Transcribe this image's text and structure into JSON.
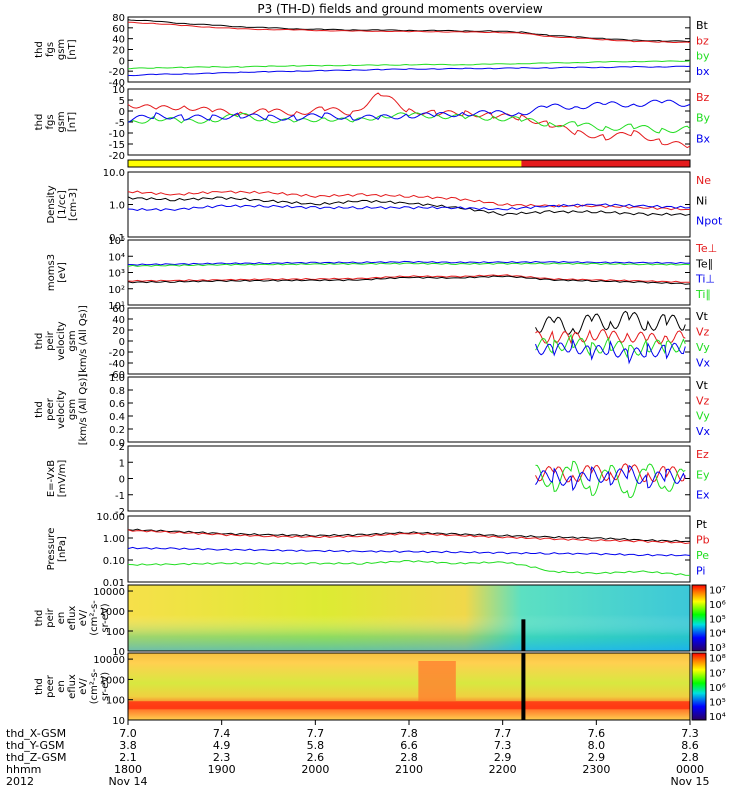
{
  "title": "P3 (TH-D) fields and ground moments overview",
  "colors": {
    "black": "#000000",
    "red": "#e41a1c",
    "green": "#22dd22",
    "blue": "#0000ee",
    "yellow": "#ffff00"
  },
  "chart_data": [
    {
      "type": "line",
      "id": "fgs",
      "ylabel": [
        "thd",
        "fgs",
        "gsm",
        "[nT]"
      ],
      "ylim": [
        -40,
        80
      ],
      "yticks": [
        -40,
        -20,
        0,
        20,
        40,
        60,
        80
      ],
      "legend": [
        {
          "name": "Bt",
          "color": "black"
        },
        {
          "name": "bz",
          "color": "red"
        },
        {
          "name": "by",
          "color": "green"
        },
        {
          "name": "bx",
          "color": "blue"
        }
      ],
      "x": [
        0,
        0.3,
        0.6,
        0.9,
        1.2,
        1.5,
        1.8,
        2.1,
        2.4,
        2.7,
        3.0,
        3.3,
        3.6,
        3.9,
        4.2,
        4.5,
        4.8,
        5.1,
        5.4,
        5.7,
        6.0
      ],
      "series": [
        {
          "name": "Bt",
          "color": "black",
          "values": [
            75,
            72,
            68,
            65,
            62,
            60,
            58,
            57,
            56,
            56,
            55,
            55,
            54,
            54,
            52,
            46,
            43,
            40,
            37,
            36,
            35
          ]
        },
        {
          "name": "bz",
          "color": "red",
          "values": [
            70,
            68,
            64,
            61,
            58,
            57,
            56,
            55,
            54,
            54,
            53,
            53,
            52,
            52,
            50,
            44,
            41,
            38,
            35,
            34,
            33
          ]
        },
        {
          "name": "by",
          "color": "green",
          "values": [
            -15,
            -14,
            -13,
            -12,
            -12,
            -11,
            -10,
            -10,
            -9,
            -9,
            -8,
            -8,
            -8,
            -7,
            -6,
            -5,
            -4,
            -3,
            -2,
            -2,
            -1
          ]
        },
        {
          "name": "bx",
          "color": "blue",
          "values": [
            -28,
            -26,
            -25,
            -24,
            -22,
            -21,
            -20,
            -19,
            -18,
            -17,
            -16,
            -16,
            -15,
            -15,
            -14,
            -14,
            -13,
            -13,
            -12,
            -12,
            -11
          ]
        }
      ]
    },
    {
      "type": "line",
      "id": "fgs_zoom",
      "ylabel": [
        "thd",
        "fgs",
        "gsm",
        "[nT]"
      ],
      "ylim": [
        -20,
        10
      ],
      "yticks": [
        -20,
        -15,
        -10,
        -5,
        0,
        5,
        10
      ],
      "legend": [
        {
          "name": "Bz",
          "color": "red"
        },
        {
          "name": "By",
          "color": "green"
        },
        {
          "name": "Bx",
          "color": "blue"
        }
      ],
      "x": [
        0,
        0.3,
        0.6,
        0.9,
        1.2,
        1.5,
        1.8,
        2.1,
        2.4,
        2.7,
        3.0,
        3.3,
        3.6,
        3.9,
        4.2,
        4.5,
        4.8,
        5.1,
        5.4,
        5.7,
        6.0
      ],
      "series": [
        {
          "name": "Bz",
          "color": "red",
          "values": [
            3,
            1,
            2,
            0,
            -1,
            0,
            -1,
            1,
            -1,
            8,
            0,
            -1,
            -1,
            -2,
            -3,
            -6,
            -10,
            -12,
            -10,
            -14,
            -16
          ]
        },
        {
          "name": "By",
          "color": "green",
          "values": [
            -6,
            -3,
            -5,
            -4,
            -2,
            -4,
            -5,
            -3,
            -5,
            -2,
            -2,
            -2,
            -3,
            -3,
            -4,
            -6,
            -6,
            -8,
            -7,
            -9,
            -8
          ]
        },
        {
          "name": "Bx",
          "color": "blue",
          "values": [
            -4,
            -2,
            -3,
            -3,
            -2,
            -3,
            -3,
            -2,
            -3,
            -3,
            -2,
            -2,
            -1,
            -1,
            -1,
            2,
            2,
            3,
            3,
            4,
            3
          ]
        }
      ]
    },
    {
      "type": "bar",
      "id": "mode_bar",
      "segments": [
        {
          "from": 0,
          "to": 4.2,
          "color": "yellow"
        },
        {
          "from": 4.2,
          "to": 6.0,
          "color": "red"
        }
      ]
    },
    {
      "type": "line",
      "id": "density",
      "scale": "log",
      "ylabel": [
        "Density",
        "[1/cc]",
        "[cm-3]"
      ],
      "ylim": [
        0.1,
        10
      ],
      "yticks": [
        0.1,
        1.0,
        10.0
      ],
      "legend": [
        {
          "name": "Ne",
          "color": "red"
        },
        {
          "name": "Ni",
          "color": "black"
        },
        {
          "name": "Npot",
          "color": "blue"
        }
      ],
      "x": [
        0,
        0.5,
        1.0,
        1.5,
        2.0,
        2.5,
        3.0,
        3.5,
        4.0,
        4.5,
        5.0,
        5.5,
        6.0
      ],
      "series": [
        {
          "name": "Ne",
          "color": "red",
          "values": [
            2.5,
            2.0,
            2.5,
            2.3,
            1.8,
            2.0,
            1.8,
            1.5,
            1.0,
            0.9,
            0.9,
            0.8,
            0.7
          ]
        },
        {
          "name": "Ni",
          "color": "black",
          "values": [
            1.6,
            1.4,
            1.6,
            1.3,
            1.0,
            1.3,
            1.1,
            0.8,
            0.5,
            0.6,
            0.6,
            0.5,
            0.5
          ]
        },
        {
          "name": "Npot",
          "color": "blue",
          "values": [
            0.7,
            0.7,
            0.9,
            0.9,
            0.8,
            0.8,
            0.8,
            0.8,
            0.7,
            0.9,
            1.0,
            0.9,
            0.8
          ]
        }
      ]
    },
    {
      "type": "line",
      "id": "temperature",
      "scale": "log",
      "ylabel": [
        "moms3",
        "[eV]"
      ],
      "ylim": [
        10,
        100000
      ],
      "yticks": [
        10,
        100,
        1000,
        10000,
        100000
      ],
      "ytick_labels": [
        "10¹",
        "10²",
        "10³",
        "10⁴",
        "10⁵"
      ],
      "legend": [
        {
          "name": "Te⊥",
          "color": "red"
        },
        {
          "name": "Te∥",
          "color": "black"
        },
        {
          "name": "Ti⊥",
          "color": "blue"
        },
        {
          "name": "Ti∥",
          "color": "green"
        }
      ],
      "x": [
        0,
        0.5,
        1.0,
        1.5,
        2.0,
        2.5,
        3.0,
        3.5,
        4.0,
        4.5,
        5.0,
        5.5,
        6.0
      ],
      "series": [
        {
          "name": "Te⊥",
          "color": "red",
          "values": [
            300,
            320,
            350,
            380,
            400,
            420,
            600,
            550,
            700,
            400,
            350,
            300,
            250
          ]
        },
        {
          "name": "Te∥",
          "color": "black",
          "values": [
            250,
            270,
            300,
            320,
            330,
            350,
            500,
            450,
            600,
            350,
            300,
            250,
            200
          ]
        },
        {
          "name": "Ti⊥",
          "color": "blue",
          "values": [
            3000,
            3300,
            3600,
            3800,
            4000,
            4200,
            4500,
            4200,
            4300,
            4500,
            4200,
            4000,
            3800
          ]
        },
        {
          "name": "Ti∥",
          "color": "green",
          "values": [
            2500,
            2700,
            3000,
            3100,
            3300,
            3400,
            3600,
            3400,
            3500,
            3600,
            3400,
            3200,
            3000
          ]
        }
      ]
    },
    {
      "type": "line",
      "id": "peir_velocity",
      "ylabel": [
        "thd",
        "peir",
        "velocity",
        "gsm",
        "[km/s (All Qs)]"
      ],
      "ylim": [
        -60,
        60
      ],
      "yticks": [
        -60,
        -40,
        -20,
        0,
        20,
        40,
        60
      ],
      "legend": [
        {
          "name": "Vt",
          "color": "black"
        },
        {
          "name": "Vz",
          "color": "red"
        },
        {
          "name": "Vy",
          "color": "green"
        },
        {
          "name": "Vx",
          "color": "blue"
        }
      ],
      "x": [
        4.35,
        4.55,
        4.75,
        4.95,
        5.15,
        5.35,
        5.55,
        5.75,
        5.95
      ],
      "series": [
        {
          "name": "Vt",
          "color": "black",
          "values": [
            25,
            35,
            20,
            40,
            30,
            45,
            28,
            38,
            30
          ]
        },
        {
          "name": "Vz",
          "color": "red",
          "values": [
            5,
            10,
            2,
            15,
            5,
            12,
            0,
            10,
            5
          ]
        },
        {
          "name": "Vy",
          "color": "green",
          "values": [
            -5,
            -10,
            0,
            -15,
            -5,
            -20,
            -8,
            -12,
            -5
          ]
        },
        {
          "name": "Vx",
          "color": "blue",
          "values": [
            -10,
            -20,
            -5,
            -25,
            -10,
            -30,
            -15,
            -20,
            -10
          ]
        }
      ]
    },
    {
      "type": "line",
      "id": "peer_velocity",
      "ylabel": [
        "thd",
        "peer",
        "velocity",
        "gsm",
        "[km/s (All Qs)]"
      ],
      "ylim": [
        0,
        1
      ],
      "yticks": [
        0,
        0.2,
        0.4,
        0.6,
        0.8,
        1.0
      ],
      "ytick_labels": [
        "0.0",
        "0.2",
        "0.4",
        "0.6",
        "0.8",
        "1.0"
      ],
      "legend": [
        {
          "name": "Vt",
          "color": "black"
        },
        {
          "name": "Vz",
          "color": "red"
        },
        {
          "name": "Vy",
          "color": "green"
        },
        {
          "name": "Vx",
          "color": "blue"
        }
      ],
      "series": []
    },
    {
      "type": "line",
      "id": "efield",
      "ylabel": [
        "E=-VxB",
        "[mV/m]"
      ],
      "ylim": [
        -2,
        2
      ],
      "yticks": [
        -2,
        -1,
        0,
        1,
        2
      ],
      "legend": [
        {
          "name": "Ez",
          "color": "red"
        },
        {
          "name": "Ey",
          "color": "green"
        },
        {
          "name": "Ex",
          "color": "blue"
        }
      ],
      "x": [
        4.35,
        4.55,
        4.75,
        4.95,
        5.15,
        5.35,
        5.55,
        5.75,
        5.95
      ],
      "series": [
        {
          "name": "Ez",
          "color": "red",
          "values": [
            0.2,
            0.4,
            0.1,
            0.5,
            0.2,
            0.6,
            0.1,
            0.4,
            0.2
          ]
        },
        {
          "name": "Ey",
          "color": "green",
          "values": [
            0.5,
            -0.5,
            0.8,
            -0.8,
            0.6,
            -1,
            0.7,
            -0.6,
            0.5
          ]
        },
        {
          "name": "Ex",
          "color": "blue",
          "values": [
            0,
            0.2,
            -0.3,
            0.3,
            0,
            0.4,
            -0.2,
            0.2,
            0
          ]
        }
      ]
    },
    {
      "type": "line",
      "id": "pressure",
      "scale": "log",
      "ylabel": [
        "Pressure",
        "[nPa]"
      ],
      "ylim": [
        0.01,
        10
      ],
      "yticks": [
        0.01,
        0.1,
        1.0,
        10.0
      ],
      "ytick_labels": [
        "0.01",
        "0.10",
        "1.00",
        "10.00"
      ],
      "legend": [
        {
          "name": "Pt",
          "color": "black"
        },
        {
          "name": "Pb",
          "color": "red"
        },
        {
          "name": "Pe",
          "color": "green"
        },
        {
          "name": "Pi",
          "color": "blue"
        }
      ],
      "x": [
        0,
        0.5,
        1.0,
        1.5,
        2.0,
        2.5,
        3.0,
        3.5,
        4.0,
        4.5,
        5.0,
        5.5,
        6.0
      ],
      "series": [
        {
          "name": "Pt",
          "color": "black",
          "values": [
            2.4,
            2.0,
            1.6,
            1.4,
            1.3,
            1.4,
            1.8,
            1.5,
            1.3,
            1.1,
            1.0,
            0.8,
            0.7
          ]
        },
        {
          "name": "Pb",
          "color": "red",
          "values": [
            2.2,
            1.8,
            1.4,
            1.2,
            1.1,
            1.2,
            1.6,
            1.3,
            1.1,
            0.9,
            0.8,
            0.7,
            0.6
          ]
        },
        {
          "name": "Pe",
          "color": "green",
          "values": [
            0.06,
            0.065,
            0.07,
            0.07,
            0.07,
            0.07,
            0.09,
            0.07,
            0.08,
            0.03,
            0.025,
            0.03,
            0.02
          ]
        },
        {
          "name": "Pi",
          "color": "blue",
          "values": [
            0.35,
            0.33,
            0.3,
            0.28,
            0.26,
            0.25,
            0.24,
            0.23,
            0.21,
            0.2,
            0.19,
            0.17,
            0.16
          ]
        }
      ]
    },
    {
      "type": "heatmap",
      "id": "peir_spectrogram",
      "scale": "log",
      "ylabel": [
        "thd",
        "peir",
        "en",
        "eflux",
        "eV/",
        "(cm²-s-",
        "sr-eV)"
      ],
      "ylim": [
        10,
        20000
      ],
      "yticks": [
        10,
        100,
        1000,
        10000
      ],
      "colorbar": {
        "min": 1000,
        "max": 10000000,
        "tick_labels": [
          "10³",
          "10⁴",
          "10⁵",
          "10⁶",
          "10⁷"
        ]
      }
    },
    {
      "type": "heatmap",
      "id": "peer_spectrogram",
      "scale": "log",
      "ylabel": [
        "thd",
        "peer",
        "en",
        "eflux",
        "eV/",
        "(cm²-s-",
        "sr-eV)"
      ],
      "ylim": [
        10,
        20000
      ],
      "yticks": [
        10,
        100,
        1000,
        10000
      ],
      "colorbar": {
        "min": 10000,
        "max": 100000000,
        "tick_labels": [
          "10⁴",
          "10⁵",
          "10⁶",
          "10⁷",
          "10⁸"
        ]
      }
    }
  ],
  "x_axis": {
    "row_labels": [
      "thd_X-GSM",
      "thd_Y-GSM",
      "thd_Z-GSM",
      "hhmm",
      "2012"
    ],
    "ticks": [
      {
        "X": "7.0",
        "Y": "3.8",
        "Z": "2.1",
        "hhmm": "1800",
        "date": "Nov 14"
      },
      {
        "X": "7.4",
        "Y": "4.9",
        "Z": "2.3",
        "hhmm": "1900",
        "date": ""
      },
      {
        "X": "7.7",
        "Y": "5.8",
        "Z": "2.6",
        "hhmm": "2000",
        "date": ""
      },
      {
        "X": "7.8",
        "Y": "6.6",
        "Z": "2.8",
        "hhmm": "2100",
        "date": ""
      },
      {
        "X": "7.7",
        "Y": "7.3",
        "Z": "2.9",
        "hhmm": "2200",
        "date": ""
      },
      {
        "X": "7.6",
        "Y": "8.0",
        "Z": "2.9",
        "hhmm": "2300",
        "date": ""
      },
      {
        "X": "7.3",
        "Y": "8.6",
        "Z": "2.8",
        "hhmm": "0000",
        "date": "Nov 15"
      }
    ]
  }
}
